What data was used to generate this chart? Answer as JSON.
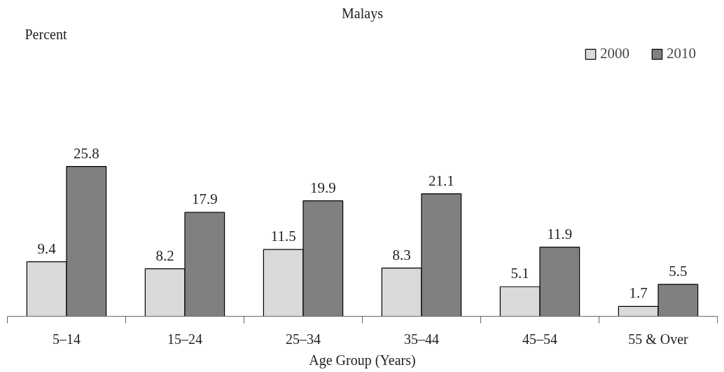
{
  "chart_data": {
    "type": "bar",
    "title": "Malays",
    "annotations": [
      "Percent"
    ],
    "xlabel": "Age Group (Years)",
    "categories": [
      "5–14",
      "15–24",
      "25–34",
      "35–44",
      "45–54",
      "55 & Over"
    ],
    "series": [
      {
        "name": "2000",
        "color": "#d9d9d9",
        "values": [
          9.4,
          8.2,
          11.5,
          8.3,
          5.1,
          1.7
        ]
      },
      {
        "name": "2010",
        "color": "#808080",
        "values": [
          25.8,
          17.9,
          19.9,
          21.1,
          11.9,
          5.5
        ]
      }
    ],
    "data_labels": true,
    "legend": "top right",
    "grid": false
  }
}
